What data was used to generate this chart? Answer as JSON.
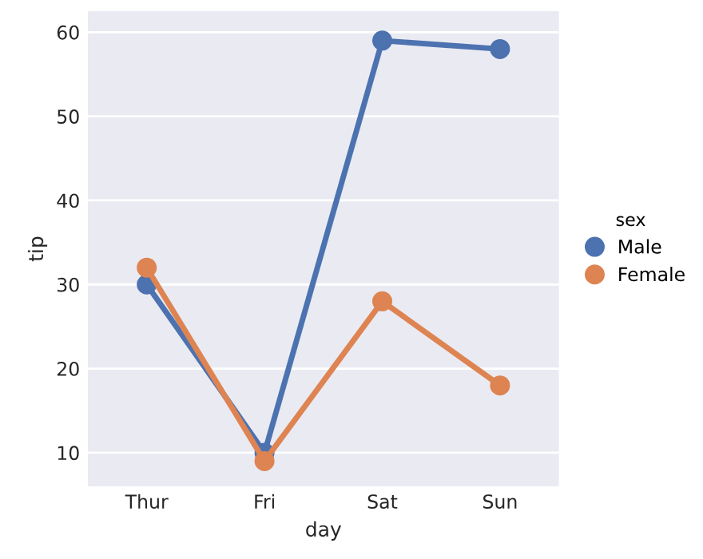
{
  "chart_data": {
    "type": "line",
    "xlabel": "day",
    "ylabel": "tip",
    "legend_title": "sex",
    "categories": [
      "Thur",
      "Fri",
      "Sat",
      "Sun"
    ],
    "series": [
      {
        "name": "Male",
        "color": "#4c72b0",
        "values": [
          30,
          10,
          59,
          58
        ]
      },
      {
        "name": "Female",
        "color": "#dd8452",
        "values": [
          32,
          9,
          28,
          18
        ]
      }
    ],
    "ylim": [
      6,
      62.5
    ],
    "yticks": [
      10,
      20,
      30,
      40,
      50,
      60
    ],
    "grid": "y",
    "legend": "right",
    "marker": "circle",
    "line_style": "solid"
  }
}
